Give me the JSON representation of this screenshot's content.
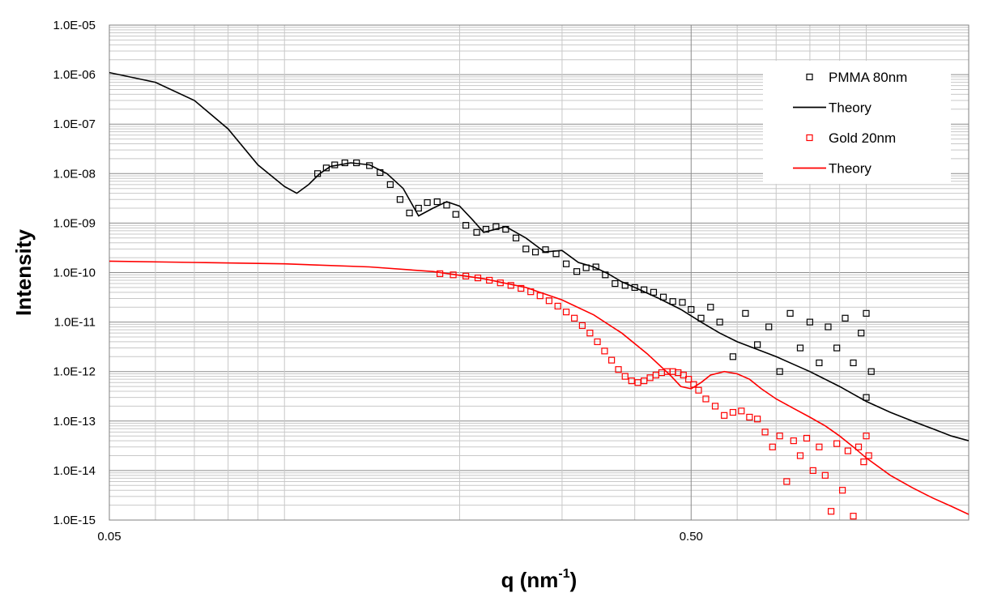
{
  "chart_data": {
    "type": "scatter",
    "xlabel": "q (nm",
    "xlabel_sup": "-1",
    "xlabel_close": ")",
    "ylabel": "Intensity",
    "xscale": "log",
    "yscale": "log",
    "xlim": [
      0.05,
      1.5
    ],
    "ylim": [
      1e-15,
      1e-05
    ],
    "x_ticks": [
      {
        "value": 0.05,
        "label": "0.05"
      },
      {
        "value": 0.5,
        "label": "0.50"
      }
    ],
    "y_ticks": [
      {
        "value": 1e-05,
        "label": "1.0E-05"
      },
      {
        "value": 1e-06,
        "label": "1.0E-06"
      },
      {
        "value": 1e-07,
        "label": "1.0E-07"
      },
      {
        "value": 1e-08,
        "label": "1.0E-08"
      },
      {
        "value": 1e-09,
        "label": "1.0E-09"
      },
      {
        "value": 1e-10,
        "label": "1.0E-10"
      },
      {
        "value": 1e-11,
        "label": "1.0E-11"
      },
      {
        "value": 1e-12,
        "label": "1.0E-12"
      },
      {
        "value": 1e-13,
        "label": "1.0E-13"
      },
      {
        "value": 1e-14,
        "label": "1.0E-14"
      },
      {
        "value": 1e-15,
        "label": "1.0E-15"
      }
    ],
    "grid": true,
    "legend_position": "top-right",
    "series": [
      {
        "name": "PMMA 80nm",
        "kind": "markers",
        "color": "#000000",
        "x": [
          0.114,
          0.118,
          0.122,
          0.127,
          0.133,
          0.14,
          0.146,
          0.152,
          0.158,
          0.164,
          0.17,
          0.176,
          0.183,
          0.19,
          0.197,
          0.205,
          0.214,
          0.222,
          0.231,
          0.24,
          0.25,
          0.26,
          0.27,
          0.281,
          0.293,
          0.305,
          0.318,
          0.33,
          0.343,
          0.356,
          0.37,
          0.385,
          0.4,
          0.415,
          0.431,
          0.448,
          0.465,
          0.483,
          0.5,
          0.52,
          0.54,
          0.56,
          0.59,
          0.62,
          0.65,
          0.68,
          0.71,
          0.74,
          0.77,
          0.8,
          0.83,
          0.86,
          0.89,
          0.92,
          0.95,
          0.98,
          1.0,
          1.0,
          1.02
        ],
        "y": [
          1e-08,
          1.3e-08,
          1.5e-08,
          1.65e-08,
          1.65e-08,
          1.45e-08,
          1.05e-08,
          6e-09,
          3e-09,
          1.6e-09,
          2e-09,
          2.6e-09,
          2.7e-09,
          2.3e-09,
          1.5e-09,
          9e-10,
          6.5e-10,
          7.5e-10,
          8.5e-10,
          7.5e-10,
          5e-10,
          3e-10,
          2.6e-10,
          2.9e-10,
          2.4e-10,
          1.5e-10,
          1.05e-10,
          1.25e-10,
          1.3e-10,
          9e-11,
          6e-11,
          5.5e-11,
          5e-11,
          4.5e-11,
          4e-11,
          3.2e-11,
          2.6e-11,
          2.5e-11,
          1.8e-11,
          1.2e-11,
          2e-11,
          1e-11,
          2e-12,
          1.5e-11,
          3.5e-12,
          8e-12,
          1e-12,
          1.5e-11,
          3e-12,
          1e-11,
          1.5e-12,
          8e-12,
          3e-12,
          1.2e-11,
          1.5e-12,
          6e-12,
          3e-13,
          1.5e-11,
          1e-12
        ]
      },
      {
        "name": "Theory",
        "kind": "line",
        "color": "#000000",
        "x": [
          0.05,
          0.06,
          0.07,
          0.08,
          0.09,
          0.1,
          0.105,
          0.11,
          0.115,
          0.12,
          0.13,
          0.14,
          0.15,
          0.16,
          0.17,
          0.18,
          0.19,
          0.2,
          0.21,
          0.22,
          0.24,
          0.26,
          0.28,
          0.3,
          0.32,
          0.34,
          0.36,
          0.38,
          0.4,
          0.44,
          0.48,
          0.52,
          0.56,
          0.6,
          0.65,
          0.7,
          0.75,
          0.8,
          0.85,
          0.9,
          0.95,
          1.0,
          1.1,
          1.2,
          1.3,
          1.4,
          1.5
        ],
        "y": [
          1.1e-06,
          7e-07,
          3e-07,
          8e-08,
          1.5e-08,
          5.5e-09,
          4e-09,
          6e-09,
          1e-08,
          1.4e-08,
          1.65e-08,
          1.5e-08,
          1e-08,
          5e-09,
          1.4e-09,
          2e-09,
          2.7e-09,
          2.2e-09,
          1.2e-09,
          6.5e-10,
          8.5e-10,
          5e-10,
          2.6e-10,
          2.8e-10,
          1.6e-10,
          1.3e-10,
          9.5e-11,
          6.5e-11,
          5e-11,
          3e-11,
          1.8e-11,
          1e-11,
          6e-12,
          4e-12,
          2.8e-12,
          2e-12,
          1.4e-12,
          1e-12,
          7e-13,
          5e-13,
          3.5e-13,
          2.5e-13,
          1.5e-13,
          1e-13,
          7e-14,
          5e-14,
          4e-14
        ]
      },
      {
        "name": "Gold 20nm",
        "kind": "markers",
        "color": "#ff0000",
        "x": [
          0.185,
          0.195,
          0.205,
          0.215,
          0.225,
          0.235,
          0.245,
          0.255,
          0.265,
          0.275,
          0.285,
          0.295,
          0.305,
          0.315,
          0.325,
          0.335,
          0.345,
          0.355,
          0.365,
          0.375,
          0.385,
          0.395,
          0.405,
          0.415,
          0.425,
          0.435,
          0.445,
          0.455,
          0.465,
          0.475,
          0.485,
          0.495,
          0.505,
          0.515,
          0.53,
          0.55,
          0.57,
          0.59,
          0.61,
          0.63,
          0.65,
          0.67,
          0.69,
          0.71,
          0.73,
          0.75,
          0.77,
          0.79,
          0.81,
          0.83,
          0.85,
          0.87,
          0.89,
          0.91,
          0.93,
          0.95,
          0.97,
          0.99,
          1.0,
          1.01
        ],
        "y": [
          9.5e-11,
          9e-11,
          8.5e-11,
          7.8e-11,
          7e-11,
          6.2e-11,
          5.5e-11,
          4.8e-11,
          4.1e-11,
          3.4e-11,
          2.7e-11,
          2.1e-11,
          1.6e-11,
          1.2e-11,
          8.5e-12,
          6e-12,
          4e-12,
          2.6e-12,
          1.7e-12,
          1.1e-12,
          8e-13,
          6.5e-13,
          6e-13,
          6.5e-13,
          7.5e-13,
          8.5e-13,
          9.5e-13,
          1e-12,
          1e-12,
          9.5e-13,
          8.5e-13,
          7e-13,
          5.5e-13,
          4.2e-13,
          2.8e-13,
          2e-13,
          1.3e-13,
          1.5e-13,
          1.6e-13,
          1.2e-13,
          1.1e-13,
          6e-14,
          3e-14,
          5e-14,
          6e-15,
          4e-14,
          2e-14,
          4.5e-14,
          1e-14,
          3e-14,
          8e-15,
          1.5e-15,
          3.5e-14,
          4e-15,
          2.5e-14,
          1.2e-15,
          3e-14,
          1.5e-14,
          5e-14,
          2e-14
        ]
      },
      {
        "name": "Theory",
        "kind": "line",
        "color": "#ff0000",
        "x": [
          0.05,
          0.07,
          0.1,
          0.14,
          0.18,
          0.22,
          0.26,
          0.3,
          0.34,
          0.38,
          0.42,
          0.46,
          0.48,
          0.5,
          0.52,
          0.54,
          0.57,
          0.6,
          0.63,
          0.66,
          0.7,
          0.75,
          0.8,
          0.85,
          0.9,
          0.95,
          1.0,
          1.1,
          1.2,
          1.3,
          1.4,
          1.5
        ],
        "y": [
          1.7e-10,
          1.6e-10,
          1.5e-10,
          1.3e-10,
          1.05e-10,
          7.5e-11,
          5e-11,
          2.8e-11,
          1.4e-11,
          6e-12,
          2.3e-12,
          8.5e-13,
          5e-13,
          4.5e-13,
          6e-13,
          8.5e-13,
          1e-12,
          9e-13,
          7e-13,
          4.5e-13,
          2.8e-13,
          1.8e-13,
          1.2e-13,
          8e-14,
          5e-14,
          3e-14,
          1.8e-14,
          8e-15,
          4.5e-15,
          2.8e-15,
          1.9e-15,
          1.3e-15
        ]
      }
    ]
  }
}
